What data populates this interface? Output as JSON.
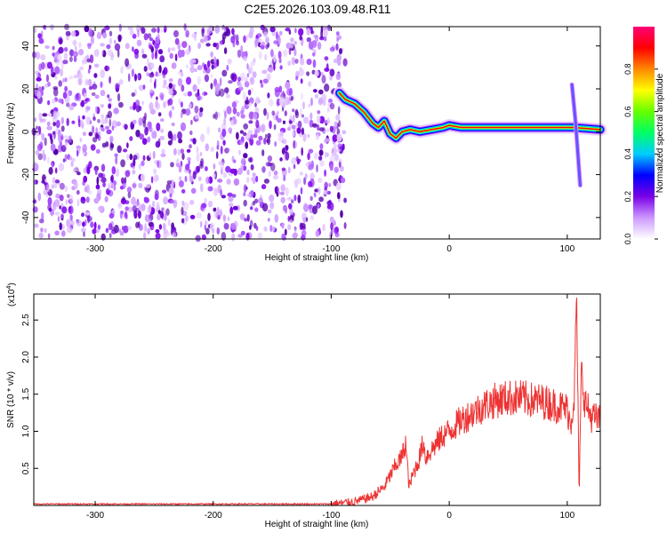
{
  "title": "C2E5.2026.103.09.48.R11",
  "chart_data": [
    {
      "type": "heatmap",
      "xlabel": "Height of straight line (km)",
      "ylabel": "Frequency (Hz)",
      "xlim": [
        -352,
        128
      ],
      "ylim": [
        -50,
        49
      ],
      "xticks": [
        -300,
        -200,
        -100,
        0,
        100
      ],
      "yticks": [
        -40,
        -20,
        0,
        20,
        40
      ],
      "noise_region_x": [
        -352,
        -88
      ],
      "track": [
        {
          "x": -93,
          "y": 18
        },
        {
          "x": -88,
          "y": 15
        },
        {
          "x": -80,
          "y": 13
        },
        {
          "x": -72,
          "y": 9
        },
        {
          "x": -65,
          "y": 4
        },
        {
          "x": -60,
          "y": 2
        },
        {
          "x": -55,
          "y": 5
        },
        {
          "x": -50,
          "y": -1
        },
        {
          "x": -45,
          "y": -3
        },
        {
          "x": -40,
          "y": 0
        },
        {
          "x": -33,
          "y": 1
        },
        {
          "x": -25,
          "y": 0
        },
        {
          "x": -15,
          "y": 1
        },
        {
          "x": -5,
          "y": 2
        },
        {
          "x": 0,
          "y": 3
        },
        {
          "x": 10,
          "y": 2
        },
        {
          "x": 50,
          "y": 2
        },
        {
          "x": 90,
          "y": 2
        },
        {
          "x": 105,
          "y": 2
        },
        {
          "x": 128,
          "y": 1
        }
      ],
      "side_streak": [
        {
          "x": 104,
          "y": 22
        },
        {
          "x": 107,
          "y": 5
        },
        {
          "x": 111,
          "y": -25
        }
      ],
      "colorbar": {
        "label": "Normalized spectral amplitude",
        "ticks": [
          "0.0",
          "0.2",
          "0.4",
          "0.6",
          "0.8"
        ],
        "range": [
          0,
          1
        ],
        "colors": [
          "#ffffff",
          "#cc99ff",
          "#7a00e6",
          "#0000ff",
          "#00ccff",
          "#00ff66",
          "#66ff00",
          "#ffff00",
          "#ff8800",
          "#ff0000",
          "#ff0077"
        ]
      }
    },
    {
      "type": "line",
      "xlabel": "Height of straight line (km)",
      "ylabel": "SNR (10 * v/v)",
      "yscale_label": "(x10",
      "yscale_exp": "4",
      "ytick_labels": [
        "0.5",
        "1.0",
        "1.5",
        "2.0",
        "2.5"
      ],
      "yticks": [
        0.5,
        1.0,
        1.5,
        2.0,
        2.5
      ],
      "xticks": [
        -300,
        -200,
        -100,
        0,
        100
      ],
      "xlim": [
        -352,
        128
      ],
      "ylim": [
        0,
        2.85
      ],
      "color": "#ee3333",
      "series": [
        {
          "x": [
            -352,
            -100,
            -80,
            -65,
            -55,
            -50,
            -45,
            -40,
            -37,
            -34,
            -30,
            -26,
            -22,
            -20,
            -15,
            -10,
            -5,
            0,
            10,
            20,
            30,
            40,
            50,
            60,
            70,
            80,
            90,
            100,
            103,
            106,
            108,
            110,
            112,
            115,
            120,
            128
          ],
          "y": [
            0.02,
            0.02,
            0.05,
            0.12,
            0.25,
            0.4,
            0.55,
            0.65,
            0.85,
            0.25,
            0.45,
            0.6,
            0.85,
            0.65,
            0.75,
            0.85,
            0.95,
            1.0,
            1.15,
            1.25,
            1.35,
            1.42,
            1.45,
            1.45,
            1.42,
            1.4,
            1.35,
            1.3,
            1.1,
            1.5,
            2.85,
            0.1,
            1.8,
            1.4,
            1.2,
            1.15
          ]
        }
      ]
    }
  ]
}
